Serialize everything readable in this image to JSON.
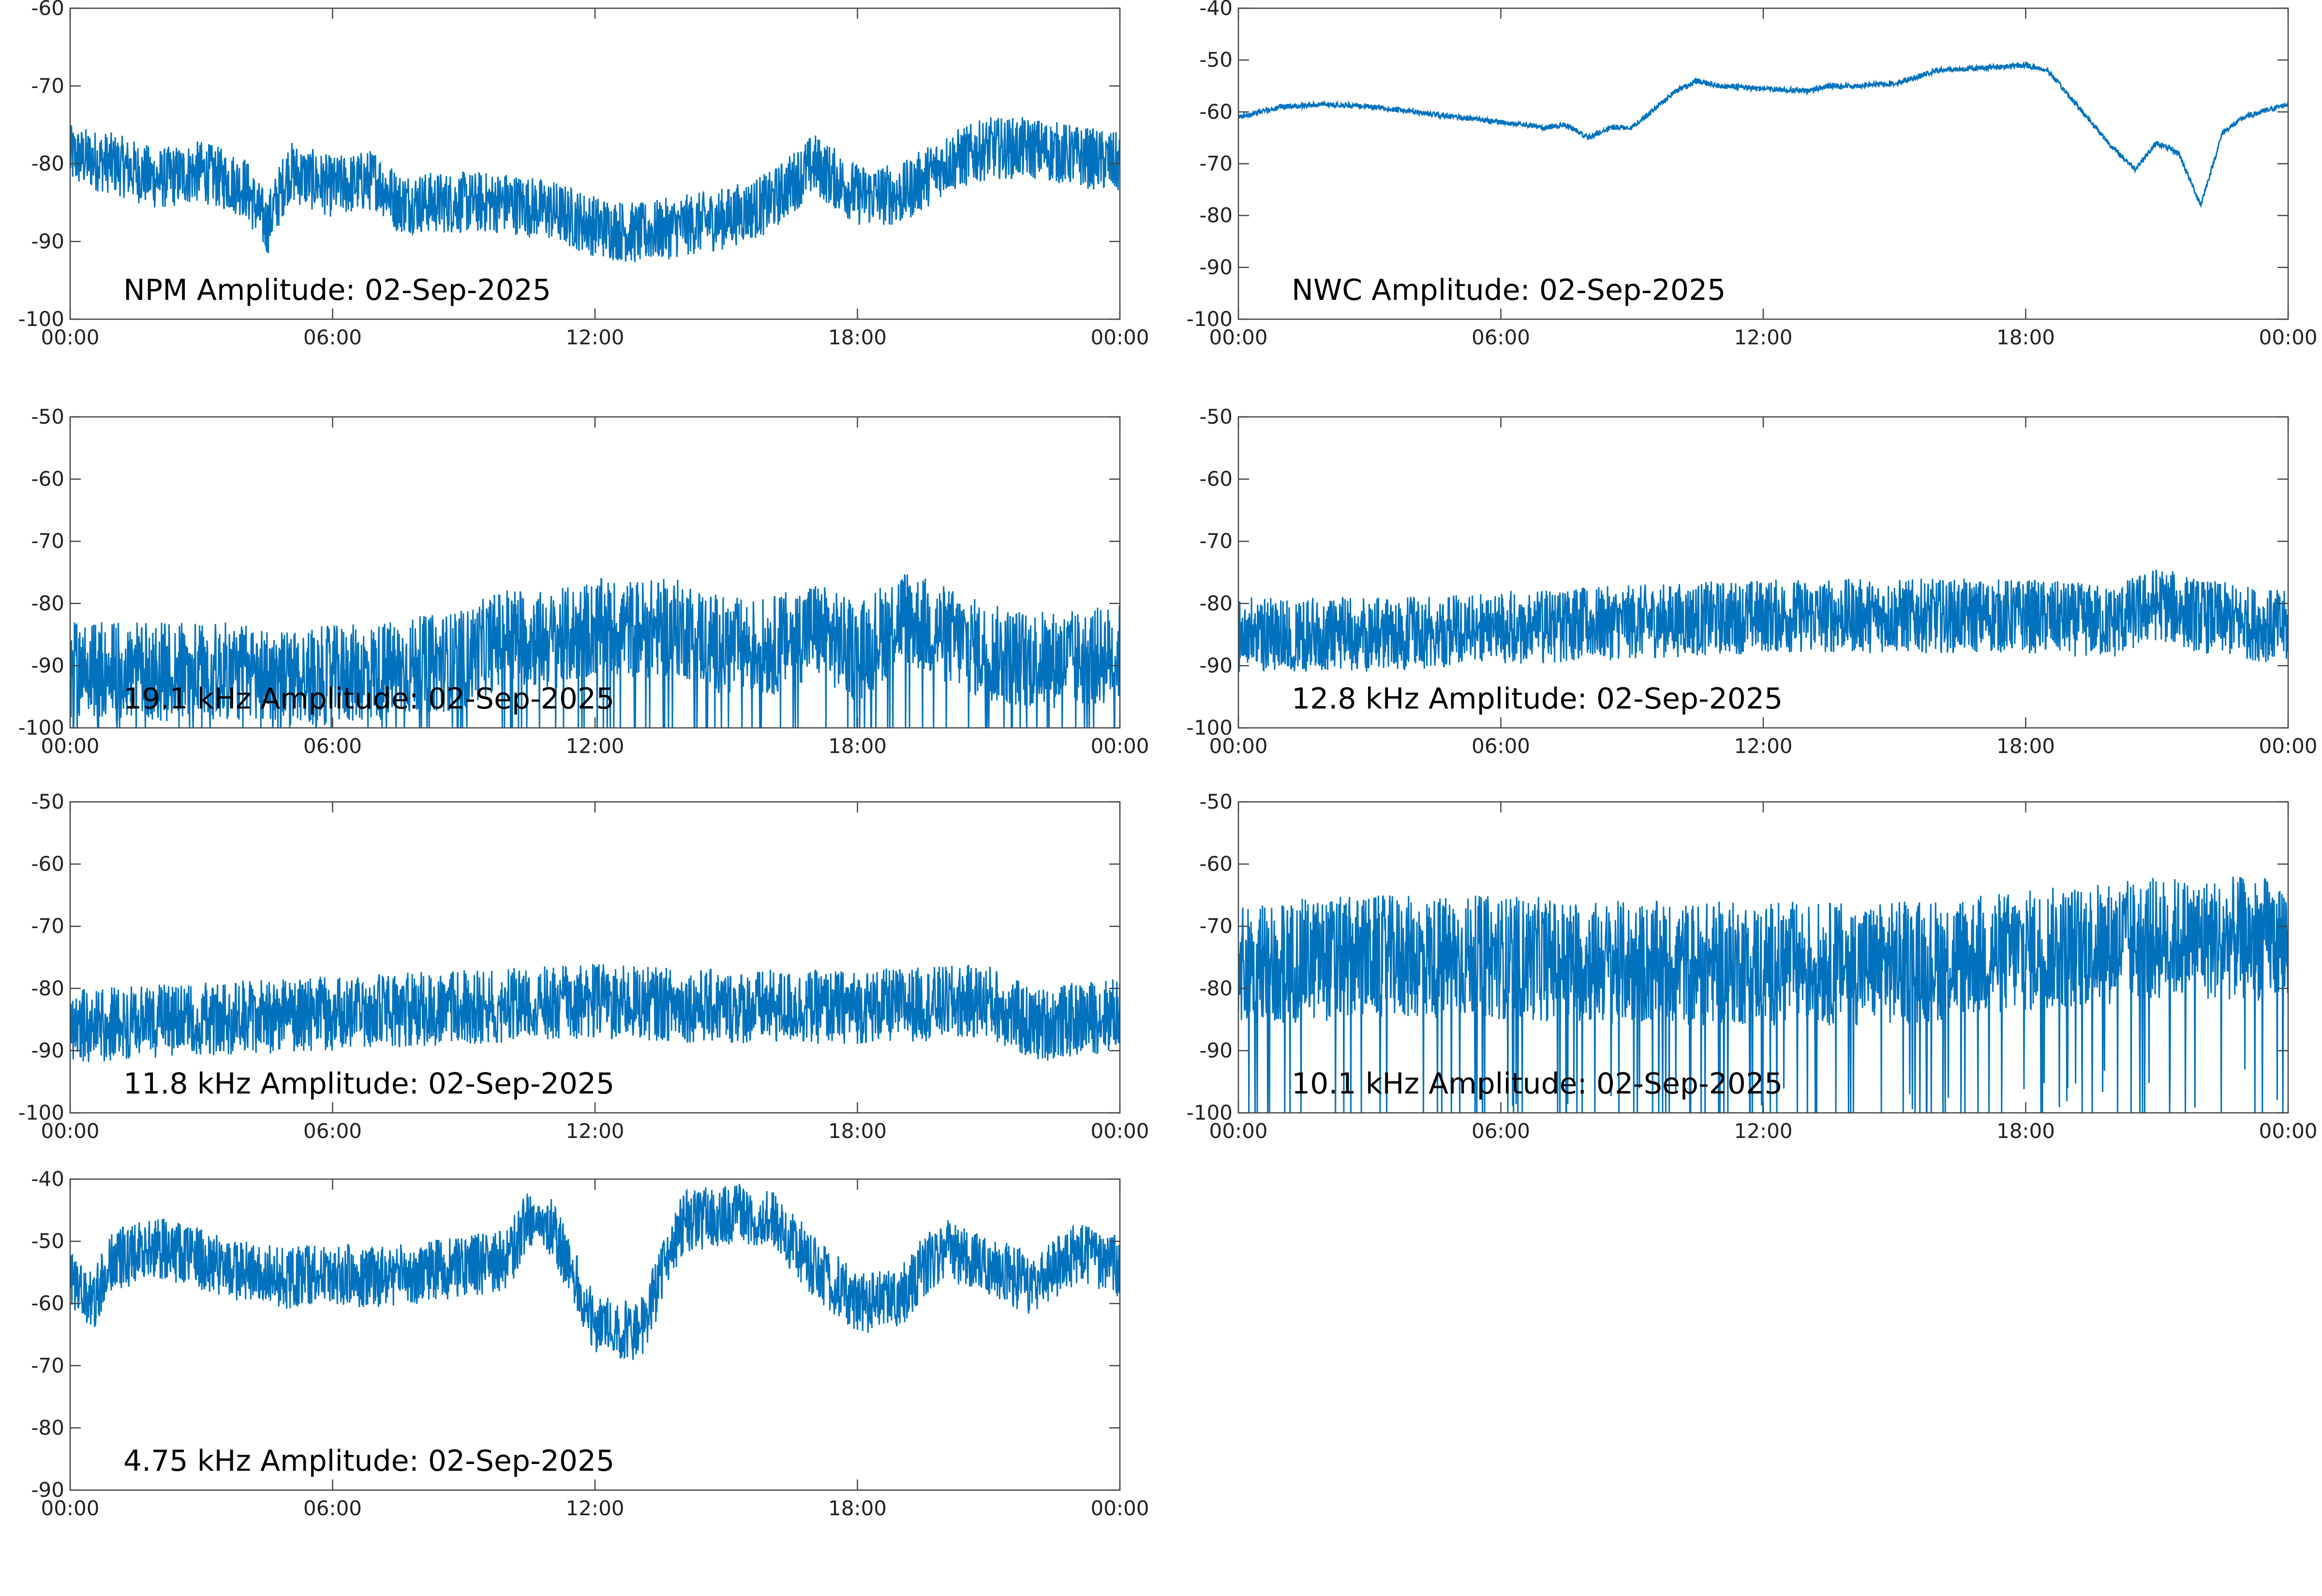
{
  "line_color": "#0072bd",
  "chart_data": [
    {
      "type": "line",
      "title": "NPM Amplitude: 02-Sep-2025",
      "xlabel": "",
      "ylabel": "",
      "xlim": [
        "00:00",
        "00:00"
      ],
      "ylim": [
        -100,
        -60
      ],
      "yticks": [
        -60,
        -70,
        -80,
        -90,
        -100
      ],
      "xticks": [
        "00:00",
        "06:00",
        "12:00",
        "18:00",
        "00:00"
      ],
      "grid": false,
      "noise": 4,
      "series": [
        {
          "x": [
            "00:00",
            "01:00",
            "02:00",
            "03:00",
            "04:00",
            "04:30",
            "05:00",
            "06:00",
            "07:00",
            "07:30",
            "08:00",
            "09:00",
            "10:00",
            "11:00",
            "12:00",
            "13:00",
            "14:00",
            "15:00",
            "16:00",
            "17:00",
            "17:30",
            "18:00",
            "19:00",
            "20:00",
            "21:00",
            "22:00",
            "23:00",
            "24:00"
          ],
          "values": [
            -79,
            -80,
            -82,
            -81,
            -83,
            -88,
            -81,
            -83,
            -82,
            -85,
            -85,
            -85,
            -85,
            -86,
            -88,
            -89,
            -88,
            -87,
            -85,
            -80,
            -82,
            -84,
            -84,
            -80,
            -78,
            -78,
            -79,
            -80
          ]
        }
      ]
    },
    {
      "type": "line",
      "title": "NWC Amplitude: 02-Sep-2025",
      "xlabel": "",
      "ylabel": "",
      "xlim": [
        "00:00",
        "00:00"
      ],
      "ylim": [
        -100,
        -40
      ],
      "yticks": [
        -40,
        -50,
        -60,
        -70,
        -80,
        -90,
        -100
      ],
      "xticks": [
        "00:00",
        "06:00",
        "12:00",
        "18:00",
        "00:00"
      ],
      "grid": false,
      "noise": 0.5,
      "series": [
        {
          "x": [
            "00:00",
            "01:00",
            "02:00",
            "03:00",
            "04:00",
            "05:00",
            "06:00",
            "07:00",
            "07:30",
            "08:00",
            "08:30",
            "09:00",
            "10:00",
            "10:30",
            "11:00",
            "12:00",
            "13:00",
            "13:30",
            "14:00",
            "15:00",
            "16:00",
            "17:00",
            "18:00",
            "18:30",
            "19:00",
            "20:00",
            "20:30",
            "21:00",
            "21:30",
            "22:00",
            "22:30",
            "23:00",
            "24:00"
          ],
          "values": [
            -61,
            -59,
            -58.5,
            -59,
            -60,
            -61,
            -62,
            -63,
            -62.5,
            -65,
            -63,
            -63,
            -56,
            -54,
            -55,
            -55.5,
            -56,
            -55,
            -55,
            -54.5,
            -52,
            -51.5,
            -51,
            -52,
            -57,
            -67,
            -71,
            -66,
            -68,
            -78,
            -64,
            -61,
            -58.5
          ]
        }
      ]
    },
    {
      "type": "line",
      "title": "19.1 kHz Amplitude: 02-Sep-2025",
      "xlabel": "",
      "ylabel": "",
      "xlim": [
        "00:00",
        "00:00"
      ],
      "ylim": [
        -100,
        -50
      ],
      "yticks": [
        -50,
        -60,
        -70,
        -80,
        -90,
        -100
      ],
      "xticks": [
        "00:00",
        "06:00",
        "12:00",
        "18:00",
        "00:00"
      ],
      "grid": false,
      "noise": 8,
      "series": [
        {
          "x": [
            "00:00",
            "02:00",
            "04:00",
            "05:00",
            "07:00",
            "09:00",
            "10:00",
            "11:00",
            "12:00",
            "14:00",
            "15:00",
            "16:00",
            "17:00",
            "18:00",
            "19:00",
            "20:00",
            "21:00",
            "22:00",
            "23:00",
            "24:00"
          ],
          "values": [
            -91,
            -91,
            -91,
            -92,
            -91,
            -89,
            -85,
            -86,
            -84,
            -84,
            -87,
            -87,
            -84,
            -88,
            -82,
            -85,
            -88,
            -89,
            -89,
            -88
          ]
        }
      ]
    },
    {
      "type": "line",
      "title": "12.8 kHz Amplitude: 02-Sep-2025",
      "xlabel": "",
      "ylabel": "",
      "xlim": [
        "00:00",
        "00:00"
      ],
      "ylim": [
        -100,
        -50
      ],
      "yticks": [
        -50,
        -60,
        -70,
        -80,
        -90,
        -100
      ],
      "xticks": [
        "00:00",
        "06:00",
        "12:00",
        "18:00",
        "00:00"
      ],
      "grid": false,
      "noise": 6,
      "series": [
        {
          "x": [
            "00:00",
            "03:00",
            "06:00",
            "09:00",
            "12:00",
            "15:00",
            "18:00",
            "20:00",
            "21:00",
            "22:00",
            "24:00"
          ],
          "values": [
            -85,
            -85,
            -84,
            -83,
            -82,
            -82,
            -82,
            -83,
            -80,
            -82,
            -84
          ]
        }
      ]
    },
    {
      "type": "line",
      "title": "11.8 kHz Amplitude: 02-Sep-2025",
      "xlabel": "",
      "ylabel": "",
      "xlim": [
        "00:00",
        "00:00"
      ],
      "ylim": [
        -100,
        -50
      ],
      "yticks": [
        -50,
        -60,
        -70,
        -80,
        -90,
        -100
      ],
      "xticks": [
        "00:00",
        "06:00",
        "12:00",
        "18:00",
        "00:00"
      ],
      "grid": false,
      "noise": 6,
      "series": [
        {
          "x": [
            "00:00",
            "03:00",
            "06:00",
            "09:00",
            "12:00",
            "15:00",
            "18:00",
            "21:00",
            "22:00",
            "24:00"
          ],
          "values": [
            -86,
            -85,
            -84,
            -83,
            -82,
            -83,
            -83,
            -82,
            -86,
            -84
          ]
        }
      ]
    },
    {
      "type": "line",
      "title": "10.1 kHz Amplitude: 02-Sep-2025",
      "xlabel": "",
      "ylabel": "",
      "xlim": [
        "00:00",
        "00:00"
      ],
      "ylim": [
        -100,
        -50
      ],
      "yticks": [
        -50,
        -60,
        -70,
        -80,
        -90,
        -100
      ],
      "xticks": [
        "00:00",
        "06:00",
        "12:00",
        "18:00",
        "00:00"
      ],
      "grid": false,
      "noise": 10,
      "series": [
        {
          "x": [
            "00:00",
            "03:00",
            "06:00",
            "09:00",
            "12:00",
            "15:00",
            "18:00",
            "21:00",
            "24:00"
          ],
          "values": [
            -76,
            -75,
            -75,
            -76,
            -76,
            -76,
            -74,
            -72,
            -72
          ]
        }
      ]
    },
    {
      "type": "line",
      "title": "4.75 kHz Amplitude: 02-Sep-2025",
      "xlabel": "",
      "ylabel": "",
      "xlim": [
        "00:00",
        "00:00"
      ],
      "ylim": [
        -90,
        -40
      ],
      "yticks": [
        -40,
        -50,
        -60,
        -70,
        -80,
        -90
      ],
      "xticks": [
        "00:00",
        "06:00",
        "12:00",
        "18:00",
        "00:00"
      ],
      "grid": false,
      "noise": 5,
      "series": [
        {
          "x": [
            "00:00",
            "00:30",
            "01:00",
            "02:00",
            "03:00",
            "04:00",
            "05:00",
            "06:00",
            "07:00",
            "08:00",
            "09:00",
            "10:00",
            "10:30",
            "11:00",
            "12:00",
            "13:00",
            "14:00",
            "15:00",
            "16:00",
            "17:00",
            "18:00",
            "19:00",
            "19:30",
            "20:00",
            "21:00",
            "22:00",
            "23:00",
            "24:00"
          ],
          "values": [
            -56,
            -60,
            -53,
            -51,
            -53,
            -55,
            -56,
            -55,
            -56,
            -55,
            -54,
            -53,
            -46,
            -48,
            -63,
            -65,
            -47,
            -45.5,
            -46,
            -54,
            -60,
            -59,
            -54,
            -51,
            -54,
            -57,
            -52,
            -54
          ]
        }
      ]
    }
  ]
}
